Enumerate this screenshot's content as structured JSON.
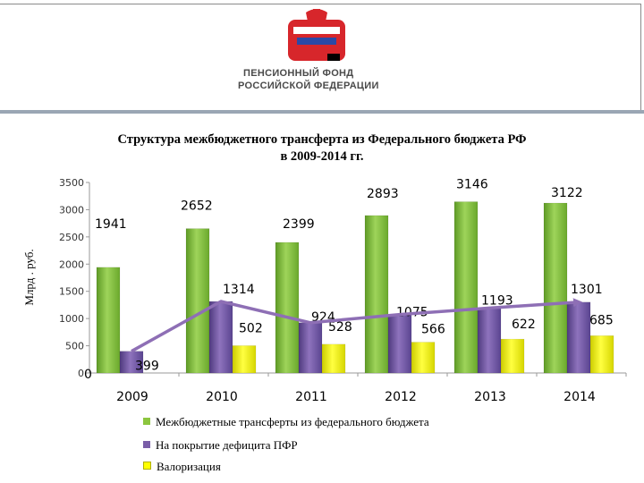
{
  "header": {
    "org_line1": "ПЕНСИОННЫЙ ФОНД",
    "org_line2": "РОССИЙСКОЙ ФЕДЕРАЦИИ"
  },
  "chart_data": {
    "type": "bar",
    "title": "Структура межбюджетного трансферта из Федерального бюджета РФ",
    "subtitle": "в 2009-2014 гг.",
    "ylabel": "Млрд . руб.",
    "ylim": [
      0,
      3500
    ],
    "yticks": [
      0,
      500,
      1000,
      1500,
      2000,
      2500,
      3000,
      3500
    ],
    "grid": false,
    "legend_position": "bottom",
    "categories": [
      "2009",
      "2010",
      "2011",
      "2012",
      "2013",
      "2014"
    ],
    "series": [
      {
        "name": "Межбюджетные трансферты из федерального бюджета",
        "values": [
          1941,
          2652,
          2399,
          2893,
          3146,
          3122
        ],
        "color": "#8cc63f"
      },
      {
        "name": "На покрытие дефицита ПФР",
        "values": [
          399,
          1314,
          924,
          1075,
          1193,
          1301
        ],
        "color": "#7a5ea8"
      },
      {
        "name": "Валоризация",
        "values": [
          0,
          502,
          528,
          566,
          622,
          685
        ],
        "color": "#ffff00"
      }
    ],
    "trend_line": {
      "series": "На покрытие дефицита ПФР",
      "color": "#8e6fb5"
    }
  }
}
